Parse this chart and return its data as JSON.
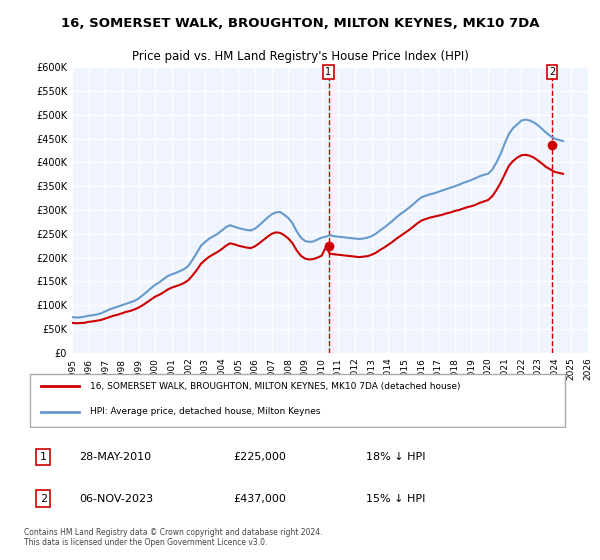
{
  "title1": "16, SOMERSET WALK, BROUGHTON, MILTON KEYNES, MK10 7DA",
  "title2": "Price paid vs. HM Land Registry's House Price Index (HPI)",
  "ylabel": "",
  "background_color": "#ffffff",
  "plot_bg_color": "#f0f4ff",
  "grid_color": "#ffffff",
  "red_color": "#cc0000",
  "blue_color": "#6699cc",
  "dashed_color": "#cc0000",
  "marker1_year": 2010.41,
  "marker1_val": 225000,
  "marker2_year": 2023.84,
  "marker2_val": 437000,
  "yticks": [
    0,
    50000,
    100000,
    150000,
    200000,
    250000,
    300000,
    350000,
    400000,
    450000,
    500000,
    550000,
    600000
  ],
  "ytick_labels": [
    "£0",
    "£50K",
    "£100K",
    "£150K",
    "£200K",
    "£250K",
    "£300K",
    "£350K",
    "£400K",
    "£450K",
    "£500K",
    "£550K",
    "£600K"
  ],
  "xmin": 1995,
  "xmax": 2026,
  "ymin": 0,
  "ymax": 600000,
  "legend_red": "16, SOMERSET WALK, BROUGHTON, MILTON KEYNES, MK10 7DA (detached house)",
  "legend_blue": "HPI: Average price, detached house, Milton Keynes",
  "annotation1_label": "1",
  "annotation1_date": "28-MAY-2010",
  "annotation1_price": "£225,000",
  "annotation1_hpi": "18% ↓ HPI",
  "annotation2_label": "2",
  "annotation2_date": "06-NOV-2023",
  "annotation2_price": "£437,000",
  "annotation2_hpi": "15% ↓ HPI",
  "footer": "Contains HM Land Registry data © Crown copyright and database right 2024.\nThis data is licensed under the Open Government Licence v3.0.",
  "hpi_data_years": [
    1995.0,
    1995.25,
    1995.5,
    1995.75,
    1996.0,
    1996.25,
    1996.5,
    1996.75,
    1997.0,
    1997.25,
    1997.5,
    1997.75,
    1998.0,
    1998.25,
    1998.5,
    1998.75,
    1999.0,
    1999.25,
    1999.5,
    1999.75,
    2000.0,
    2000.25,
    2000.5,
    2000.75,
    2001.0,
    2001.25,
    2001.5,
    2001.75,
    2002.0,
    2002.25,
    2002.5,
    2002.75,
    2003.0,
    2003.25,
    2003.5,
    2003.75,
    2004.0,
    2004.25,
    2004.5,
    2004.75,
    2005.0,
    2005.25,
    2005.5,
    2005.75,
    2006.0,
    2006.25,
    2006.5,
    2006.75,
    2007.0,
    2007.25,
    2007.5,
    2007.75,
    2008.0,
    2008.25,
    2008.5,
    2008.75,
    2009.0,
    2009.25,
    2009.5,
    2009.75,
    2010.0,
    2010.25,
    2010.5,
    2010.75,
    2011.0,
    2011.25,
    2011.5,
    2011.75,
    2012.0,
    2012.25,
    2012.5,
    2012.75,
    2013.0,
    2013.25,
    2013.5,
    2013.75,
    2014.0,
    2014.25,
    2014.5,
    2014.75,
    2015.0,
    2015.25,
    2015.5,
    2015.75,
    2016.0,
    2016.25,
    2016.5,
    2016.75,
    2017.0,
    2017.25,
    2017.5,
    2017.75,
    2018.0,
    2018.25,
    2018.5,
    2018.75,
    2019.0,
    2019.25,
    2019.5,
    2019.75,
    2020.0,
    2020.25,
    2020.5,
    2020.75,
    2021.0,
    2021.25,
    2021.5,
    2021.75,
    2022.0,
    2022.25,
    2022.5,
    2022.75,
    2023.0,
    2023.25,
    2023.5,
    2023.75,
    2024.0,
    2024.25,
    2024.5
  ],
  "hpi_data_vals": [
    75000,
    74000,
    74500,
    76000,
    78000,
    79000,
    80500,
    83000,
    87000,
    91000,
    94000,
    97000,
    100000,
    103000,
    106000,
    109000,
    114000,
    121000,
    128000,
    136000,
    143000,
    148000,
    155000,
    161000,
    165000,
    168000,
    172000,
    176000,
    183000,
    196000,
    210000,
    225000,
    233000,
    240000,
    245000,
    250000,
    257000,
    264000,
    268000,
    265000,
    262000,
    260000,
    258000,
    257000,
    261000,
    268000,
    276000,
    284000,
    291000,
    295000,
    296000,
    290000,
    283000,
    272000,
    255000,
    242000,
    235000,
    233000,
    234000,
    238000,
    242000,
    244000,
    247000,
    245000,
    244000,
    243000,
    242000,
    241000,
    240000,
    239000,
    240000,
    242000,
    245000,
    250000,
    257000,
    263000,
    270000,
    277000,
    285000,
    292000,
    298000,
    305000,
    312000,
    320000,
    327000,
    330000,
    333000,
    335000,
    338000,
    341000,
    344000,
    347000,
    350000,
    353000,
    357000,
    360000,
    363000,
    367000,
    371000,
    374000,
    376000,
    385000,
    400000,
    418000,
    440000,
    460000,
    472000,
    480000,
    488000,
    490000,
    488000,
    484000,
    478000,
    470000,
    462000,
    455000,
    450000,
    447000,
    445000
  ],
  "red_data_years": [
    1995.0,
    1995.25,
    1995.5,
    1995.75,
    1996.0,
    1996.25,
    1996.5,
    1996.75,
    1997.0,
    1997.25,
    1997.5,
    1997.75,
    1998.0,
    1998.25,
    1998.5,
    1998.75,
    1999.0,
    1999.25,
    1999.5,
    1999.75,
    2000.0,
    2000.25,
    2000.5,
    2000.75,
    2001.0,
    2001.25,
    2001.5,
    2001.75,
    2002.0,
    2002.25,
    2002.5,
    2002.75,
    2003.0,
    2003.25,
    2003.5,
    2003.75,
    2004.0,
    2004.25,
    2004.5,
    2004.75,
    2005.0,
    2005.25,
    2005.5,
    2005.75,
    2006.0,
    2006.25,
    2006.5,
    2006.75,
    2007.0,
    2007.25,
    2007.5,
    2007.75,
    2008.0,
    2008.25,
    2008.5,
    2008.75,
    2009.0,
    2009.25,
    2009.5,
    2009.75,
    2010.0,
    2010.25,
    2010.5,
    2010.75,
    2011.0,
    2011.25,
    2011.5,
    2011.75,
    2012.0,
    2012.25,
    2012.5,
    2012.75,
    2013.0,
    2013.25,
    2013.5,
    2013.75,
    2014.0,
    2014.25,
    2014.5,
    2014.75,
    2015.0,
    2015.25,
    2015.5,
    2015.75,
    2016.0,
    2016.25,
    2016.5,
    2016.75,
    2017.0,
    2017.25,
    2017.5,
    2017.75,
    2018.0,
    2018.25,
    2018.5,
    2018.75,
    2019.0,
    2019.25,
    2019.5,
    2019.75,
    2020.0,
    2020.25,
    2020.5,
    2020.75,
    2021.0,
    2021.25,
    2021.5,
    2021.75,
    2022.0,
    2022.25,
    2022.5,
    2022.75,
    2023.0,
    2023.25,
    2023.5,
    2023.75,
    2024.0,
    2024.25,
    2024.5
  ],
  "red_data_vals": [
    63000,
    62000,
    62500,
    63000,
    65000,
    66000,
    67500,
    69000,
    72000,
    75000,
    78000,
    80000,
    83000,
    86000,
    88000,
    91000,
    95000,
    100000,
    106000,
    112000,
    118000,
    122000,
    127000,
    133000,
    137000,
    140000,
    143000,
    147000,
    153000,
    163000,
    174000,
    187000,
    195000,
    202000,
    207000,
    212000,
    218000,
    225000,
    230000,
    228000,
    225000,
    223000,
    221000,
    220000,
    224000,
    230000,
    237000,
    244000,
    250000,
    253000,
    252000,
    247000,
    240000,
    230000,
    215000,
    204000,
    198000,
    196000,
    197000,
    200000,
    204000,
    222000,
    208000,
    207000,
    206000,
    205000,
    204000,
    203000,
    202000,
    201000,
    202000,
    203000,
    206000,
    210000,
    216000,
    221000,
    227000,
    233000,
    240000,
    246000,
    252000,
    258000,
    265000,
    272000,
    278000,
    281000,
    284000,
    286000,
    288000,
    290000,
    293000,
    295000,
    298000,
    300000,
    303000,
    306000,
    308000,
    311000,
    315000,
    318000,
    321000,
    329000,
    342000,
    357000,
    375000,
    393000,
    403000,
    410000,
    415000,
    416000,
    414000,
    410000,
    404000,
    397000,
    390000,
    385000,
    380000,
    378000,
    376000
  ]
}
